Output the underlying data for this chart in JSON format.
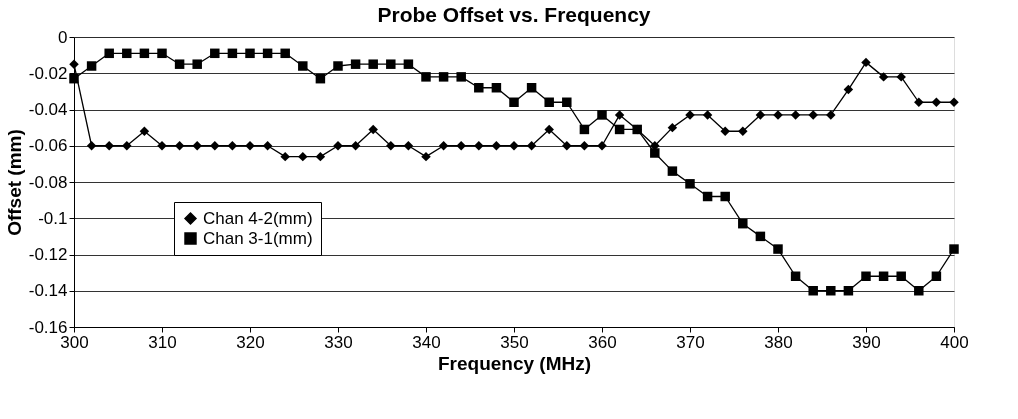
{
  "chart_data": {
    "type": "line",
    "title": "Probe Offset vs. Frequency",
    "xlabel": "Frequency (MHz)",
    "ylabel": "Offset (mm)",
    "x": [
      300,
      302,
      304,
      306,
      308,
      310,
      312,
      314,
      316,
      318,
      320,
      322,
      324,
      326,
      328,
      330,
      332,
      334,
      336,
      338,
      340,
      342,
      344,
      346,
      348,
      350,
      352,
      354,
      356,
      358,
      360,
      362,
      364,
      366,
      368,
      370,
      372,
      374,
      376,
      378,
      380,
      382,
      384,
      386,
      388,
      390,
      392,
      394,
      396,
      398,
      400
    ],
    "series": [
      {
        "name": "Chan 4-2(mm)",
        "color": "#000000",
        "marker": "diamond",
        "values": [
          -0.015,
          -0.06,
          -0.06,
          -0.06,
          -0.052,
          -0.06,
          -0.06,
          -0.06,
          -0.06,
          -0.06,
          -0.06,
          -0.06,
          -0.066,
          -0.066,
          -0.066,
          -0.06,
          -0.06,
          -0.051,
          -0.06,
          -0.06,
          -0.066,
          -0.06,
          -0.06,
          -0.06,
          -0.06,
          -0.06,
          -0.06,
          -0.051,
          -0.06,
          -0.06,
          -0.06,
          -0.043,
          -0.051,
          -0.06,
          -0.05,
          -0.043,
          -0.043,
          -0.052,
          -0.052,
          -0.043,
          -0.043,
          -0.043,
          -0.043,
          -0.043,
          -0.029,
          -0.014,
          -0.022,
          -0.022,
          -0.036,
          -0.036,
          -0.036
        ]
      },
      {
        "name": "Chan 3-1(mm)",
        "color": "#000000",
        "marker": "square",
        "values": [
          -0.023,
          -0.016,
          -0.009,
          -0.009,
          -0.009,
          -0.009,
          -0.015,
          -0.015,
          -0.009,
          -0.009,
          -0.009,
          -0.009,
          -0.009,
          -0.016,
          -0.023,
          -0.016,
          -0.015,
          -0.015,
          -0.015,
          -0.015,
          -0.022,
          -0.022,
          -0.022,
          -0.028,
          -0.028,
          -0.036,
          -0.028,
          -0.036,
          -0.036,
          -0.051,
          -0.043,
          -0.051,
          -0.051,
          -0.064,
          -0.074,
          -0.081,
          -0.088,
          -0.088,
          -0.103,
          -0.11,
          -0.117,
          -0.132,
          -0.14,
          -0.14,
          -0.14,
          -0.132,
          -0.132,
          -0.132,
          -0.14,
          -0.132,
          -0.117
        ]
      }
    ],
    "xlim": [
      300,
      400
    ],
    "xticks": [
      300,
      310,
      320,
      330,
      340,
      350,
      360,
      370,
      380,
      390,
      400
    ],
    "ylim": [
      -0.16,
      0
    ],
    "yticks": [
      -0.16,
      -0.14,
      -0.12,
      -0.1,
      -0.08,
      -0.06,
      -0.04,
      -0.02,
      0
    ],
    "grid": "y",
    "legend": "bottom left",
    "line_style": "solid"
  }
}
